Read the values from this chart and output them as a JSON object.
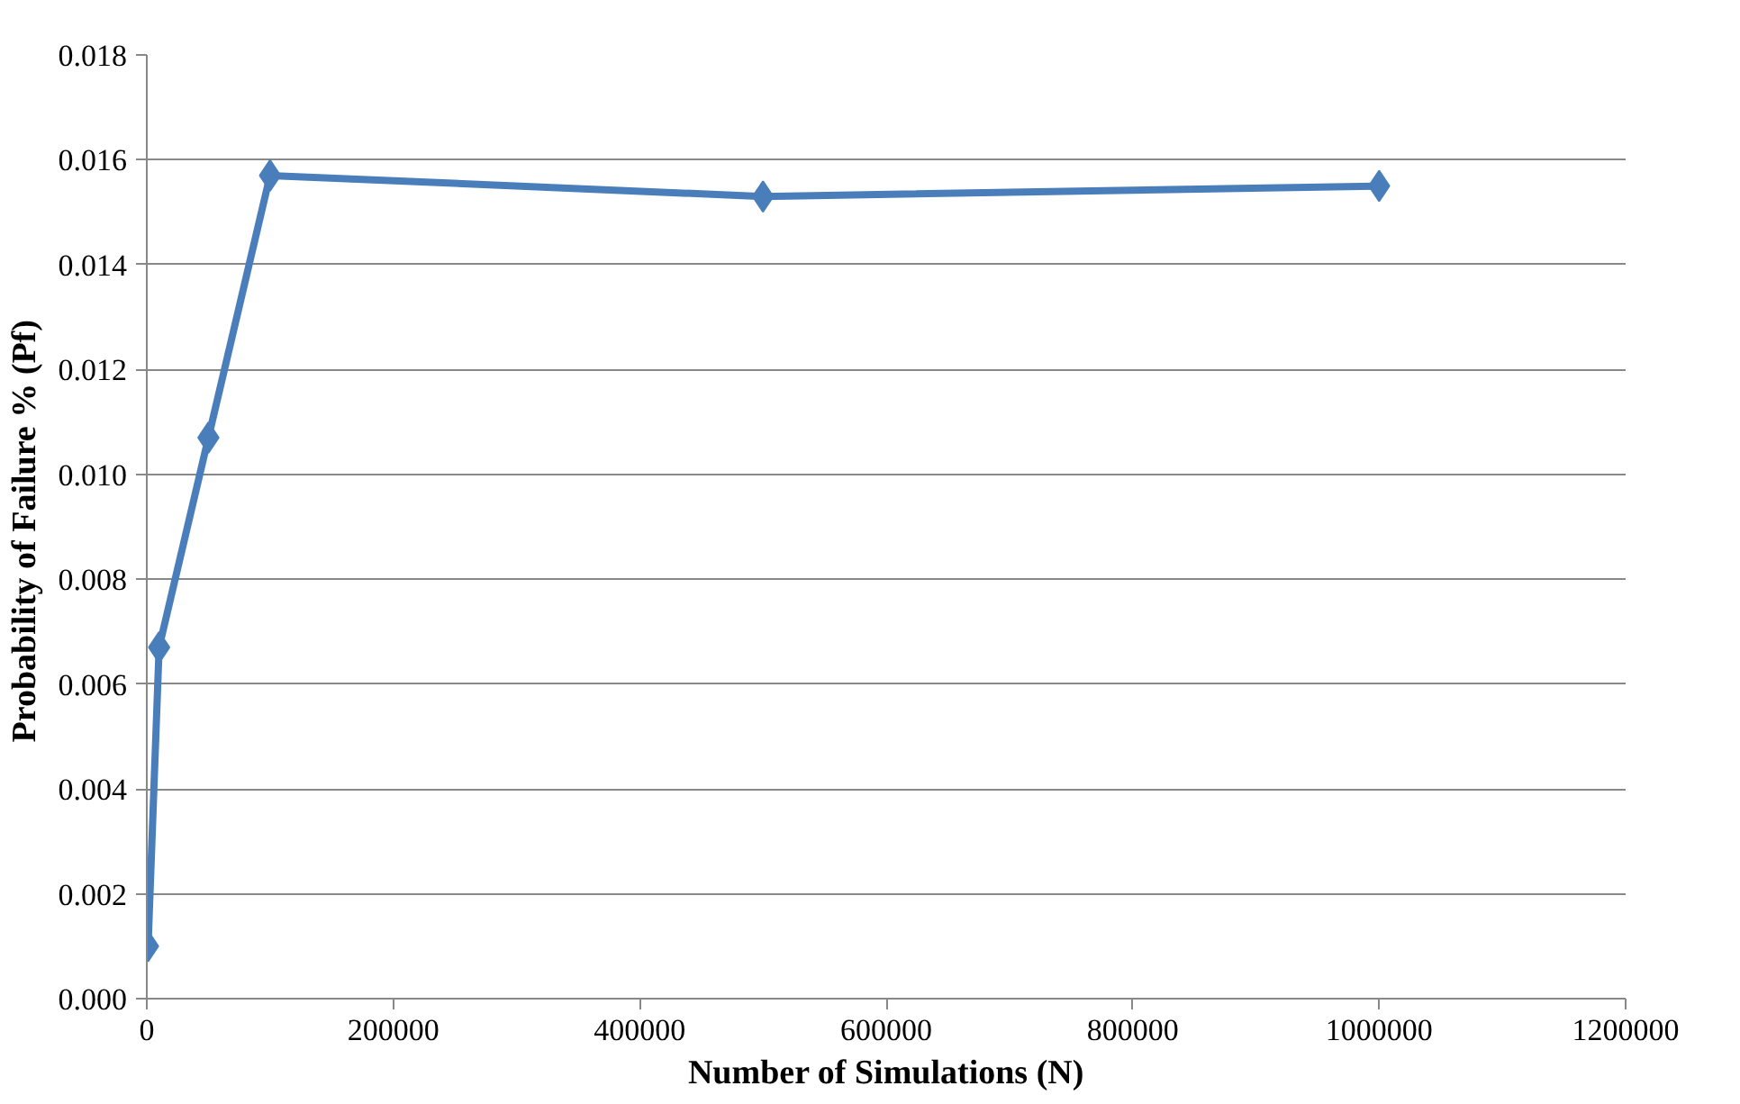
{
  "chart_data": {
    "type": "line",
    "xlabel": "Number of Simulations (N)",
    "ylabel": "Probability of  Failure % (Pf)",
    "x": [
      1000,
      10000,
      50000,
      100000,
      500000,
      1000000
    ],
    "series": [
      {
        "color": "#4a7ebb",
        "values": [
          0.001,
          0.0067,
          0.0107,
          0.0157,
          0.0153,
          0.0155
        ]
      }
    ],
    "xlim": [
      0,
      1200000
    ],
    "xticks": [
      0,
      200000,
      400000,
      600000,
      800000,
      1000000,
      1200000
    ],
    "ylim": [
      0,
      0.018
    ],
    "yticks": [
      {
        "value": 0,
        "label": "0.000"
      },
      {
        "value": 0.002,
        "label": "0.002"
      },
      {
        "value": 0.004,
        "label": "0.004"
      },
      {
        "value": 0.006,
        "label": "0.006"
      },
      {
        "value": 0.008,
        "label": "0.008"
      },
      {
        "value": 0.01,
        "label": "0.010"
      },
      {
        "value": 0.012,
        "label": "0.012"
      },
      {
        "value": 0.014,
        "label": "0.014"
      },
      {
        "value": 0.016,
        "label": "0.016"
      },
      {
        "value": 0.018,
        "label": "0.018"
      }
    ],
    "grid": "y",
    "marker": "diamond",
    "line_style": "solid"
  }
}
